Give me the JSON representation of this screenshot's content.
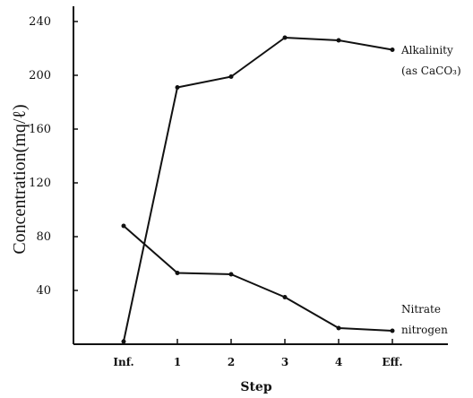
{
  "chart_data": {
    "type": "line",
    "categories": [
      "Inf.",
      "1",
      "2",
      "3",
      "4",
      "Eff."
    ],
    "xlabel": "Step",
    "ylabel": "Concentration(mq/ℓ)",
    "yticks": [
      40,
      80,
      120,
      160,
      200,
      240
    ],
    "ylim": [
      0,
      246
    ],
    "grid": false,
    "legend": "none",
    "series": [
      {
        "label_lines": [
          "Alkalinity",
          "(as CaCO₃)"
        ],
        "values": [
          2,
          191,
          199,
          228,
          226,
          219
        ]
      },
      {
        "label_lines": [
          "Nitrate",
          "nitrogen"
        ],
        "values": [
          88,
          53,
          52,
          35,
          12,
          10
        ]
      }
    ],
    "colors": {
      "line": "#111111",
      "background": "#ffffff"
    }
  }
}
